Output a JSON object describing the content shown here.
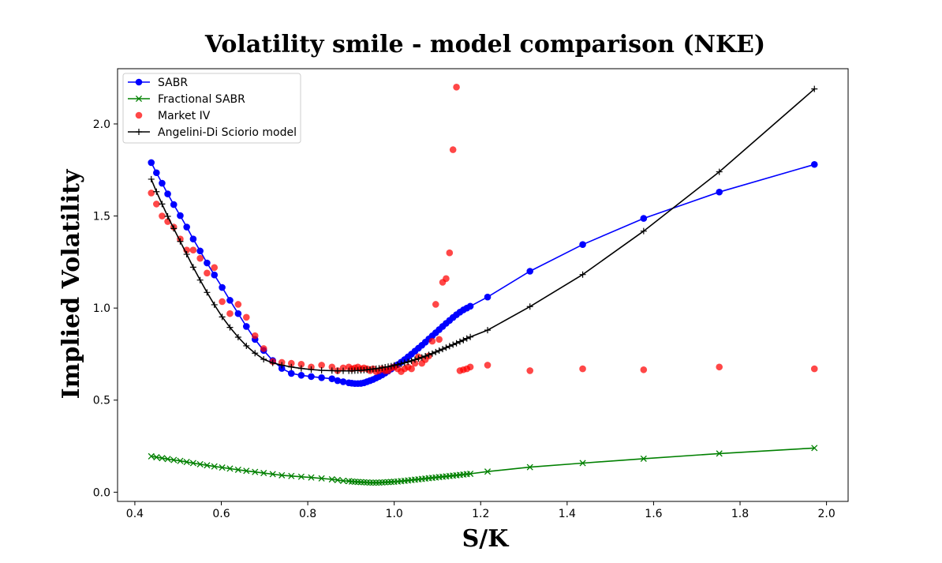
{
  "chart_data": {
    "type": "line",
    "title": "Volatility smile - model comparison (NKE)",
    "xlabel": "S/K",
    "ylabel": "Implied Volatility",
    "xlim": [
      0.36,
      2.05
    ],
    "ylim": [
      -0.05,
      2.3
    ],
    "xticks": [
      0.4,
      0.6,
      0.8,
      1.0,
      1.2,
      1.4,
      1.6,
      1.8,
      2.0
    ],
    "xtick_labels": [
      "0.4",
      "0.6",
      "0.8",
      "1.0",
      "1.2",
      "1.4",
      "1.6",
      "1.8",
      "2.0"
    ],
    "yticks": [
      0.0,
      0.5,
      1.0,
      1.5,
      2.0
    ],
    "ytick_labels": [
      "0.0",
      "0.5",
      "1.0",
      "1.5",
      "2.0"
    ],
    "grid": false,
    "legend_position": "top-left",
    "x": [
      0.438,
      0.45,
      0.463,
      0.476,
      0.49,
      0.505,
      0.52,
      0.535,
      0.551,
      0.567,
      0.584,
      0.602,
      0.62,
      0.639,
      0.658,
      0.678,
      0.698,
      0.719,
      0.74,
      0.762,
      0.785,
      0.808,
      0.832,
      0.856,
      0.869,
      0.882,
      0.895,
      0.902,
      0.909,
      0.916,
      0.923,
      0.93,
      0.937,
      0.944,
      0.951,
      0.958,
      0.965,
      0.972,
      0.979,
      0.986,
      0.993,
      1.0,
      1.008,
      1.016,
      1.024,
      1.032,
      1.04,
      1.048,
      1.056,
      1.064,
      1.072,
      1.08,
      1.088,
      1.096,
      1.104,
      1.112,
      1.12,
      1.128,
      1.136,
      1.144,
      1.152,
      1.16,
      1.168,
      1.176,
      1.216,
      1.314,
      1.436,
      1.577,
      1.752,
      1.972
    ],
    "series": [
      {
        "name": "SABR",
        "color": "#0000ff",
        "marker": "circle",
        "values": [
          1.79,
          1.735,
          1.678,
          1.62,
          1.562,
          1.502,
          1.44,
          1.375,
          1.31,
          1.245,
          1.18,
          1.112,
          1.042,
          0.97,
          0.9,
          0.83,
          0.77,
          0.715,
          0.672,
          0.645,
          0.635,
          0.628,
          0.622,
          0.616,
          0.606,
          0.6,
          0.594,
          0.592,
          0.59,
          0.59,
          0.591,
          0.594,
          0.6,
          0.606,
          0.612,
          0.62,
          0.628,
          0.637,
          0.647,
          0.658,
          0.669,
          0.681,
          0.693,
          0.706,
          0.72,
          0.735,
          0.75,
          0.766,
          0.782,
          0.798,
          0.815,
          0.832,
          0.849,
          0.866,
          0.883,
          0.9,
          0.917,
          0.933,
          0.949,
          0.964,
          0.978,
          0.99,
          1.0,
          1.01,
          1.06,
          1.2,
          1.345,
          1.487,
          1.63,
          1.78
        ]
      },
      {
        "name": "Fractional SABR",
        "color": "#008000",
        "marker": "x",
        "values": [
          0.195,
          0.19,
          0.185,
          0.18,
          0.175,
          0.17,
          0.164,
          0.158,
          0.152,
          0.146,
          0.14,
          0.134,
          0.128,
          0.122,
          0.116,
          0.11,
          0.104,
          0.098,
          0.092,
          0.088,
          0.084,
          0.08,
          0.075,
          0.07,
          0.066,
          0.062,
          0.06,
          0.058,
          0.057,
          0.056,
          0.055,
          0.054,
          0.053,
          0.052,
          0.052,
          0.052,
          0.052,
          0.053,
          0.054,
          0.055,
          0.056,
          0.057,
          0.058,
          0.06,
          0.062,
          0.064,
          0.066,
          0.068,
          0.07,
          0.072,
          0.074,
          0.076,
          0.078,
          0.08,
          0.082,
          0.084,
          0.086,
          0.088,
          0.09,
          0.092,
          0.094,
          0.096,
          0.098,
          0.1,
          0.112,
          0.136,
          0.158,
          0.182,
          0.21,
          0.24
        ]
      },
      {
        "name": "Market IV",
        "color": "#ff0000",
        "marker": "dot",
        "values": [
          1.625,
          1.565,
          1.5,
          1.47,
          1.44,
          1.375,
          1.315,
          1.315,
          1.27,
          1.19,
          1.22,
          1.035,
          0.97,
          1.02,
          0.95,
          0.85,
          0.78,
          0.71,
          0.705,
          0.7,
          0.695,
          0.68,
          0.69,
          0.68,
          0.66,
          0.675,
          0.68,
          0.67,
          0.675,
          0.68,
          0.67,
          0.675,
          0.67,
          0.66,
          0.67,
          0.655,
          0.66,
          0.67,
          0.66,
          0.66,
          0.675,
          0.68,
          0.67,
          0.655,
          0.67,
          0.68,
          0.67,
          0.7,
          0.735,
          0.7,
          0.72,
          0.74,
          0.82,
          1.02,
          0.83,
          1.14,
          1.16,
          1.3,
          1.86,
          2.2,
          0.66,
          0.665,
          0.67,
          0.68,
          0.69,
          0.66,
          0.67,
          0.665,
          0.68,
          0.67
        ]
      },
      {
        "name": "Angelini-Di Sciorio model",
        "color": "#000000",
        "marker": "plus",
        "values": [
          1.7,
          1.632,
          1.565,
          1.498,
          1.432,
          1.362,
          1.292,
          1.222,
          1.152,
          1.085,
          1.018,
          0.952,
          0.895,
          0.842,
          0.795,
          0.755,
          0.722,
          0.702,
          0.69,
          0.68,
          0.672,
          0.666,
          0.662,
          0.66,
          0.659,
          0.659,
          0.659,
          0.659,
          0.66,
          0.661,
          0.662,
          0.663,
          0.665,
          0.667,
          0.669,
          0.671,
          0.673,
          0.676,
          0.679,
          0.682,
          0.685,
          0.689,
          0.693,
          0.698,
          0.703,
          0.708,
          0.714,
          0.72,
          0.726,
          0.732,
          0.739,
          0.746,
          0.753,
          0.761,
          0.769,
          0.777,
          0.785,
          0.793,
          0.801,
          0.809,
          0.818,
          0.826,
          0.835,
          0.843,
          0.88,
          1.008,
          1.182,
          1.418,
          1.74,
          2.19
        ]
      }
    ]
  }
}
